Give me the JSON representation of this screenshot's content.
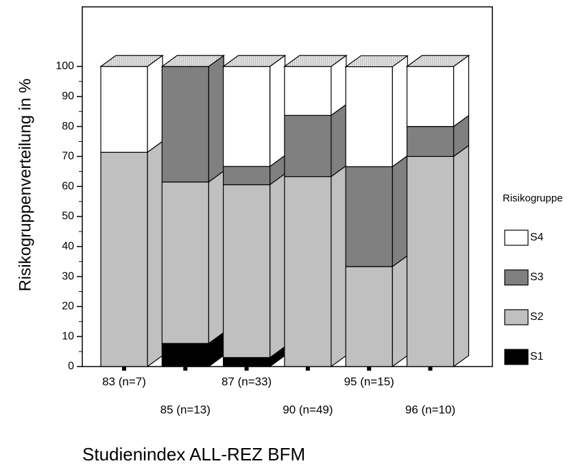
{
  "chart_data": {
    "type": "stacked-bar-3d",
    "y_label": "Risikogruppenverteilung in %",
    "x_label": "Studienindex ALL-REZ BFM",
    "legend_title": "Risikogruppe",
    "categories": [
      "83 (n=7)",
      "85 (n=13)",
      "87 (n=33)",
      "90 (n=49)",
      "95 (n=15)",
      "96 (n=10)"
    ],
    "series": [
      {
        "name": "S1",
        "color": "#000000",
        "values": [
          0,
          7.7,
          3.0,
          0,
          0,
          0
        ]
      },
      {
        "name": "S2",
        "color": "#c0c0c0",
        "values": [
          71.4,
          53.8,
          57.6,
          63.3,
          33.3,
          70
        ]
      },
      {
        "name": "S3",
        "color": "#808080",
        "values": [
          0,
          38.5,
          6.1,
          20.4,
          33.3,
          10
        ]
      },
      {
        "name": "S4",
        "color": "#ffffff",
        "values": [
          28.6,
          0,
          33.3,
          16.3,
          33.3,
          20
        ]
      }
    ],
    "ylim": [
      0,
      100
    ],
    "yticks": [
      0,
      10,
      20,
      30,
      40,
      50,
      60,
      70,
      80,
      90,
      100
    ],
    "legend": "right"
  }
}
